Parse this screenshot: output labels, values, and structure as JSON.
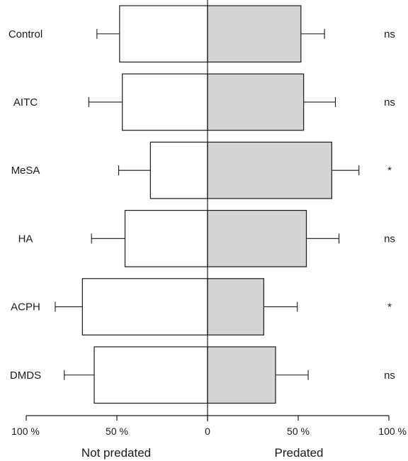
{
  "chart_data": {
    "type": "bar",
    "orientation": "horizontal-diverging",
    "categories": [
      "Control",
      "AITC",
      "MeSA",
      "HA",
      "ACPH",
      "DMDS"
    ],
    "series": [
      {
        "name": "Not predated",
        "values": [
          48.5,
          47,
          31.5,
          45.5,
          69,
          62.5
        ],
        "error": [
          12.5,
          18.5,
          17.5,
          18.5,
          15,
          16.5
        ],
        "color": "#ffffff"
      },
      {
        "name": "Predated",
        "values": [
          51.5,
          53,
          68.5,
          54.5,
          31,
          37.5
        ],
        "error": [
          13,
          17.5,
          15,
          18,
          18.5,
          18
        ],
        "color": "#d4d4d4"
      }
    ],
    "significance": [
      "ns",
      "ns",
      "*",
      "ns",
      "*",
      "ns"
    ],
    "xlim": [
      -100,
      100
    ],
    "tick_values": [
      -100,
      -50,
      0,
      50,
      100
    ],
    "tick_labels": [
      "100 %",
      "50 %",
      "0",
      "50 %",
      "100 %"
    ],
    "xlabel_left": "Not predated",
    "xlabel_right": "Predated",
    "grid": false,
    "legend": "none"
  }
}
